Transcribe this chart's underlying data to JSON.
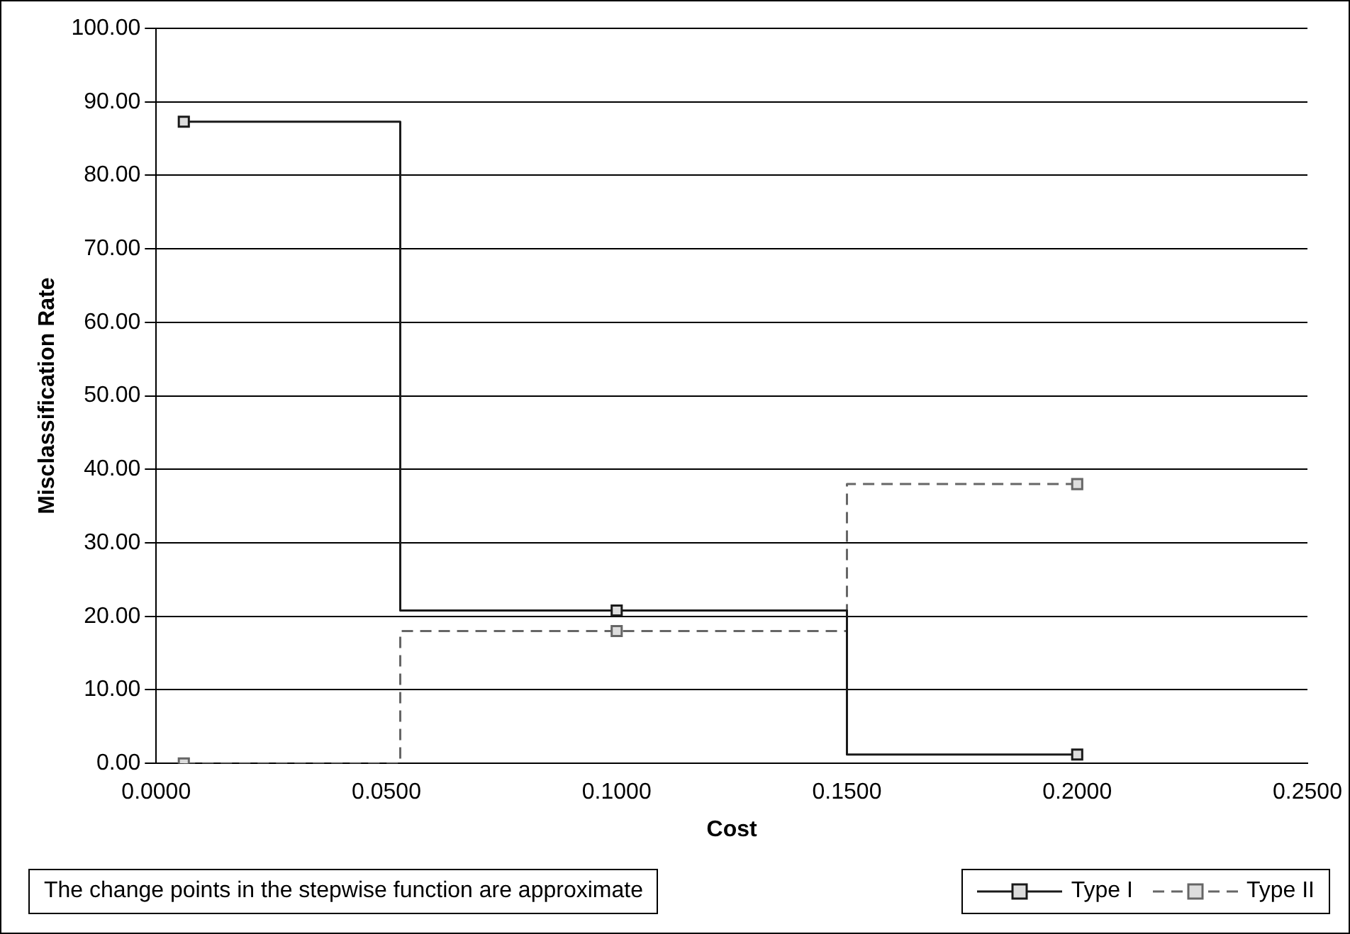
{
  "chart_data": {
    "type": "step",
    "xlabel": "Cost",
    "ylabel": "Misclassification Rate",
    "annotations": [
      "The change points in the stepwise function are approximate"
    ],
    "x": [
      0.006,
      0.1,
      0.2
    ],
    "series": [
      {
        "name": "Type I",
        "color": "#1a1a1a",
        "values": [
          87.3,
          20.8,
          1.2
        ],
        "line_style": "solid"
      },
      {
        "name": "Type II",
        "color": "#666666",
        "values": [
          0,
          18,
          38
        ],
        "line_style": "dashed"
      }
    ],
    "xlim": [
      0,
      0.25
    ],
    "xticks": [
      {
        "value": 0,
        "label": "0.0000"
      },
      {
        "value": 0.05,
        "label": "0.0500"
      },
      {
        "value": 0.1,
        "label": "0.1000"
      },
      {
        "value": 0.15,
        "label": "0.1500"
      },
      {
        "value": 0.2,
        "label": "0.2000"
      },
      {
        "value": 0.25,
        "label": "0.2500"
      }
    ],
    "ylim": [
      0,
      100
    ],
    "yticks": [
      {
        "value": 0,
        "label": "0.00"
      },
      {
        "value": 10,
        "label": "10.00"
      },
      {
        "value": 20,
        "label": "20.00"
      },
      {
        "value": 30,
        "label": "30.00"
      },
      {
        "value": 40,
        "label": "40.00"
      },
      {
        "value": 50,
        "label": "50.00"
      },
      {
        "value": 60,
        "label": "60.00"
      },
      {
        "value": 70,
        "label": "70.00"
      },
      {
        "value": 80,
        "label": "80.00"
      },
      {
        "value": 90,
        "label": "90.00"
      },
      {
        "value": 100,
        "label": "100.00"
      }
    ],
    "grid": "y",
    "legend": "bottom right",
    "marker": "square"
  }
}
